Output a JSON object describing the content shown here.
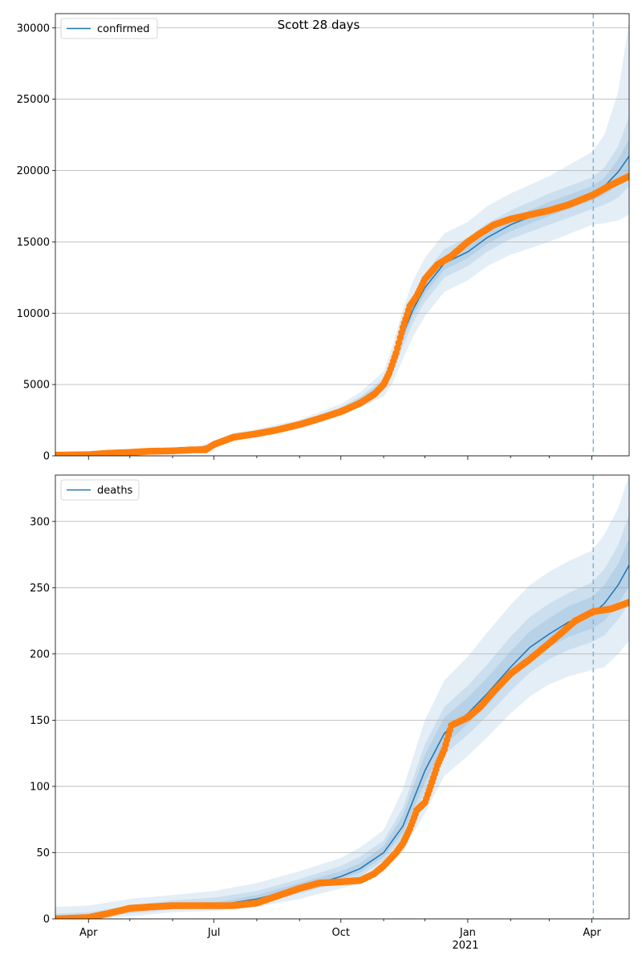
{
  "figure": {
    "title": "Scott 28 days",
    "colors": {
      "model": "#1f77b4",
      "observed": "#ff7f0e",
      "band": "#1f77b4",
      "forecast_line": "#7fb3d5",
      "grid": "#b0b0b0"
    }
  },
  "x_axis": {
    "ticks": [
      {
        "date": "2020-04-01",
        "label": "Apr"
      },
      {
        "date": "2020-07-01",
        "label": "Jul"
      },
      {
        "date": "2020-10-01",
        "label": "Oct"
      },
      {
        "date": "2021-01-01",
        "label": "Jan"
      },
      {
        "date": "2021-04-01",
        "label": "Apr"
      }
    ],
    "year_label": "2021",
    "range": [
      "2020-03-08",
      "2021-04-28"
    ]
  },
  "chart_data": [
    {
      "type": "line",
      "title": "Scott 28 days",
      "legend": {
        "label": "confirmed",
        "placement": "top-left"
      },
      "forecast_start": "2021-04-02",
      "ylim": [
        0,
        31000
      ],
      "yticks": [
        0,
        5000,
        10000,
        15000,
        20000,
        25000,
        30000
      ],
      "grid": "horizontal",
      "model": {
        "x": [
          "2020-03-08",
          "2020-04-01",
          "2020-05-01",
          "2020-06-01",
          "2020-06-15",
          "2020-07-01",
          "2020-07-15",
          "2020-08-01",
          "2020-09-01",
          "2020-10-01",
          "2020-10-15",
          "2020-11-01",
          "2020-11-08",
          "2020-11-15",
          "2020-11-22",
          "2020-12-01",
          "2020-12-15",
          "2021-01-01",
          "2021-01-15",
          "2021-02-01",
          "2021-03-01",
          "2021-04-01",
          "2021-04-10",
          "2021-04-20",
          "2021-04-28"
        ],
        "y": [
          60,
          100,
          250,
          350,
          450,
          800,
          1350,
          1600,
          2200,
          3200,
          3900,
          5000,
          6500,
          8500,
          10200,
          11800,
          13500,
          14300,
          15300,
          16200,
          17300,
          18400,
          18900,
          19900,
          21000
        ]
      },
      "bands": [
        {
          "level": "outer",
          "lower": [
            0,
            0,
            150,
            250,
            330,
            630,
            1130,
            1340,
            1870,
            2790,
            3400,
            4150,
            5200,
            6800,
            8300,
            9800,
            11500,
            12300,
            13300,
            14100,
            15000,
            16200,
            16300,
            16500,
            16900
          ],
          "upper": [
            200,
            250,
            400,
            480,
            600,
            1000,
            1600,
            1880,
            2540,
            3630,
            4450,
            5900,
            7900,
            10300,
            12200,
            13900,
            15600,
            16400,
            17500,
            18400,
            19600,
            21300,
            22500,
            25500,
            30500
          ]
        },
        {
          "level": "middle",
          "lower": [
            10,
            40,
            190,
            300,
            390,
            710,
            1240,
            1470,
            2030,
            2990,
            3650,
            4570,
            5900,
            7700,
            9300,
            10800,
            12500,
            13300,
            14300,
            15200,
            16200,
            17300,
            17600,
            18100,
            18900
          ],
          "upper": [
            110,
            160,
            310,
            400,
            510,
            890,
            1460,
            1730,
            2370,
            3410,
            4150,
            5430,
            7100,
            9300,
            11100,
            12800,
            14500,
            15300,
            16300,
            17200,
            18400,
            19500,
            20200,
            21700,
            23800
          ]
        },
        {
          "level": "inner",
          "lower": [
            40,
            75,
            225,
            330,
            425,
            760,
            1300,
            1540,
            2120,
            3100,
            3780,
            4800,
            6250,
            8150,
            9800,
            11350,
            13050,
            13850,
            14850,
            15750,
            16800,
            17900,
            18300,
            19000,
            19900
          ],
          "upper": [
            80,
            125,
            275,
            370,
            475,
            840,
            1400,
            1660,
            2280,
            3300,
            4020,
            5200,
            6750,
            8850,
            10600,
            12250,
            13950,
            14750,
            15750,
            16650,
            17800,
            18900,
            19500,
            20800,
            22200
          ]
        }
      ],
      "observed": {
        "x": [
          "2020-03-08",
          "2020-04-01",
          "2020-04-15",
          "2020-05-01",
          "2020-05-15",
          "2020-06-01",
          "2020-06-15",
          "2020-06-25",
          "2020-07-01",
          "2020-07-15",
          "2020-08-01",
          "2020-08-15",
          "2020-09-01",
          "2020-09-15",
          "2020-10-01",
          "2020-10-15",
          "2020-10-25",
          "2020-11-01",
          "2020-11-05",
          "2020-11-10",
          "2020-11-15",
          "2020-11-20",
          "2020-11-25",
          "2020-12-01",
          "2020-12-10",
          "2020-12-20",
          "2021-01-01",
          "2021-01-10",
          "2021-01-20",
          "2021-02-01",
          "2021-02-15",
          "2021-03-01",
          "2021-03-15",
          "2021-04-02",
          "2021-04-15",
          "2021-04-28"
        ],
        "y": [
          50,
          80,
          180,
          240,
          320,
          350,
          420,
          430,
          800,
          1300,
          1550,
          1800,
          2200,
          2600,
          3100,
          3700,
          4300,
          5000,
          5800,
          7200,
          9000,
          10500,
          11200,
          12400,
          13400,
          14000,
          15000,
          15600,
          16200,
          16600,
          16900,
          17200,
          17600,
          18300,
          19000,
          19600
        ]
      }
    },
    {
      "type": "line",
      "legend": {
        "label": "deaths",
        "placement": "top-left"
      },
      "forecast_start": "2021-04-02",
      "ylim": [
        0,
        335
      ],
      "yticks": [
        0,
        50,
        100,
        150,
        200,
        250,
        300
      ],
      "grid": "horizontal",
      "model": {
        "x": [
          "2020-03-08",
          "2020-04-01",
          "2020-05-01",
          "2020-06-01",
          "2020-07-01",
          "2020-08-01",
          "2020-09-01",
          "2020-10-01",
          "2020-10-15",
          "2020-11-01",
          "2020-11-15",
          "2020-12-01",
          "2020-12-15",
          "2021-01-01",
          "2021-01-15",
          "2021-02-01",
          "2021-02-15",
          "2021-03-01",
          "2021-03-15",
          "2021-04-01",
          "2021-04-10",
          "2021-04-20",
          "2021-04-28"
        ],
        "y": [
          1,
          2,
          6,
          9,
          10,
          15,
          23,
          32,
          38,
          50,
          70,
          112,
          140,
          155,
          170,
          190,
          205,
          215,
          224,
          230,
          238,
          252,
          267
        ]
      },
      "bands": [
        {
          "level": "outer",
          "lower": [
            0,
            0,
            2,
            5,
            6,
            9,
            15,
            23,
            27,
            37,
            51,
            80,
            108,
            123,
            137,
            155,
            168,
            177,
            183,
            188,
            190,
            200,
            210
          ],
          "upper": [
            9,
            10,
            15,
            18,
            21,
            27,
            36,
            46,
            54,
            67,
            98,
            150,
            180,
            198,
            216,
            237,
            252,
            262,
            270,
            278,
            290,
            310,
            335
          ]
        },
        {
          "level": "middle",
          "lower": [
            0,
            1,
            4,
            7,
            8,
            12,
            19,
            28,
            32,
            44,
            61,
            96,
            124,
            139,
            153,
            172,
            186,
            196,
            203,
            209,
            214,
            226,
            238
          ],
          "upper": [
            4,
            5,
            10,
            14,
            16,
            21,
            30,
            40,
            47,
            59,
            84,
            132,
            160,
            176,
            192,
            213,
            228,
            238,
            246,
            254,
            264,
            282,
            305
          ]
        },
        {
          "level": "inner",
          "lower": [
            0,
            2,
            5,
            8,
            9,
            13,
            21,
            30,
            35,
            47,
            65,
            103,
            131,
            147,
            161,
            181,
            195,
            205,
            213,
            219,
            225,
            238,
            251
          ],
          "upper": [
            2,
            3,
            8,
            11,
            12,
            18,
            27,
            36,
            42,
            55,
            78,
            124,
            152,
            167,
            182,
            202,
            217,
            227,
            236,
            243,
            252,
            268,
            287
          ]
        }
      ],
      "observed": {
        "x": [
          "2020-03-08",
          "2020-04-01",
          "2020-04-15",
          "2020-05-01",
          "2020-05-15",
          "2020-06-01",
          "2020-06-15",
          "2020-07-01",
          "2020-07-15",
          "2020-08-01",
          "2020-08-15",
          "2020-09-01",
          "2020-09-15",
          "2020-10-01",
          "2020-10-15",
          "2020-10-25",
          "2020-11-01",
          "2020-11-10",
          "2020-11-15",
          "2020-11-20",
          "2020-11-25",
          "2020-12-01",
          "2020-12-05",
          "2020-12-10",
          "2020-12-15",
          "2020-12-20",
          "2021-01-01",
          "2021-01-10",
          "2021-01-20",
          "2021-02-01",
          "2021-02-15",
          "2021-03-01",
          "2021-03-10",
          "2021-03-20",
          "2021-04-02",
          "2021-04-15",
          "2021-04-28"
        ],
        "y": [
          0,
          1,
          4,
          8,
          9,
          10,
          10,
          10,
          10,
          12,
          17,
          23,
          27,
          28,
          29,
          34,
          40,
          50,
          57,
          68,
          82,
          88,
          100,
          116,
          128,
          146,
          152,
          160,
          172,
          185,
          196,
          208,
          216,
          225,
          232,
          234,
          239
        ]
      }
    }
  ]
}
